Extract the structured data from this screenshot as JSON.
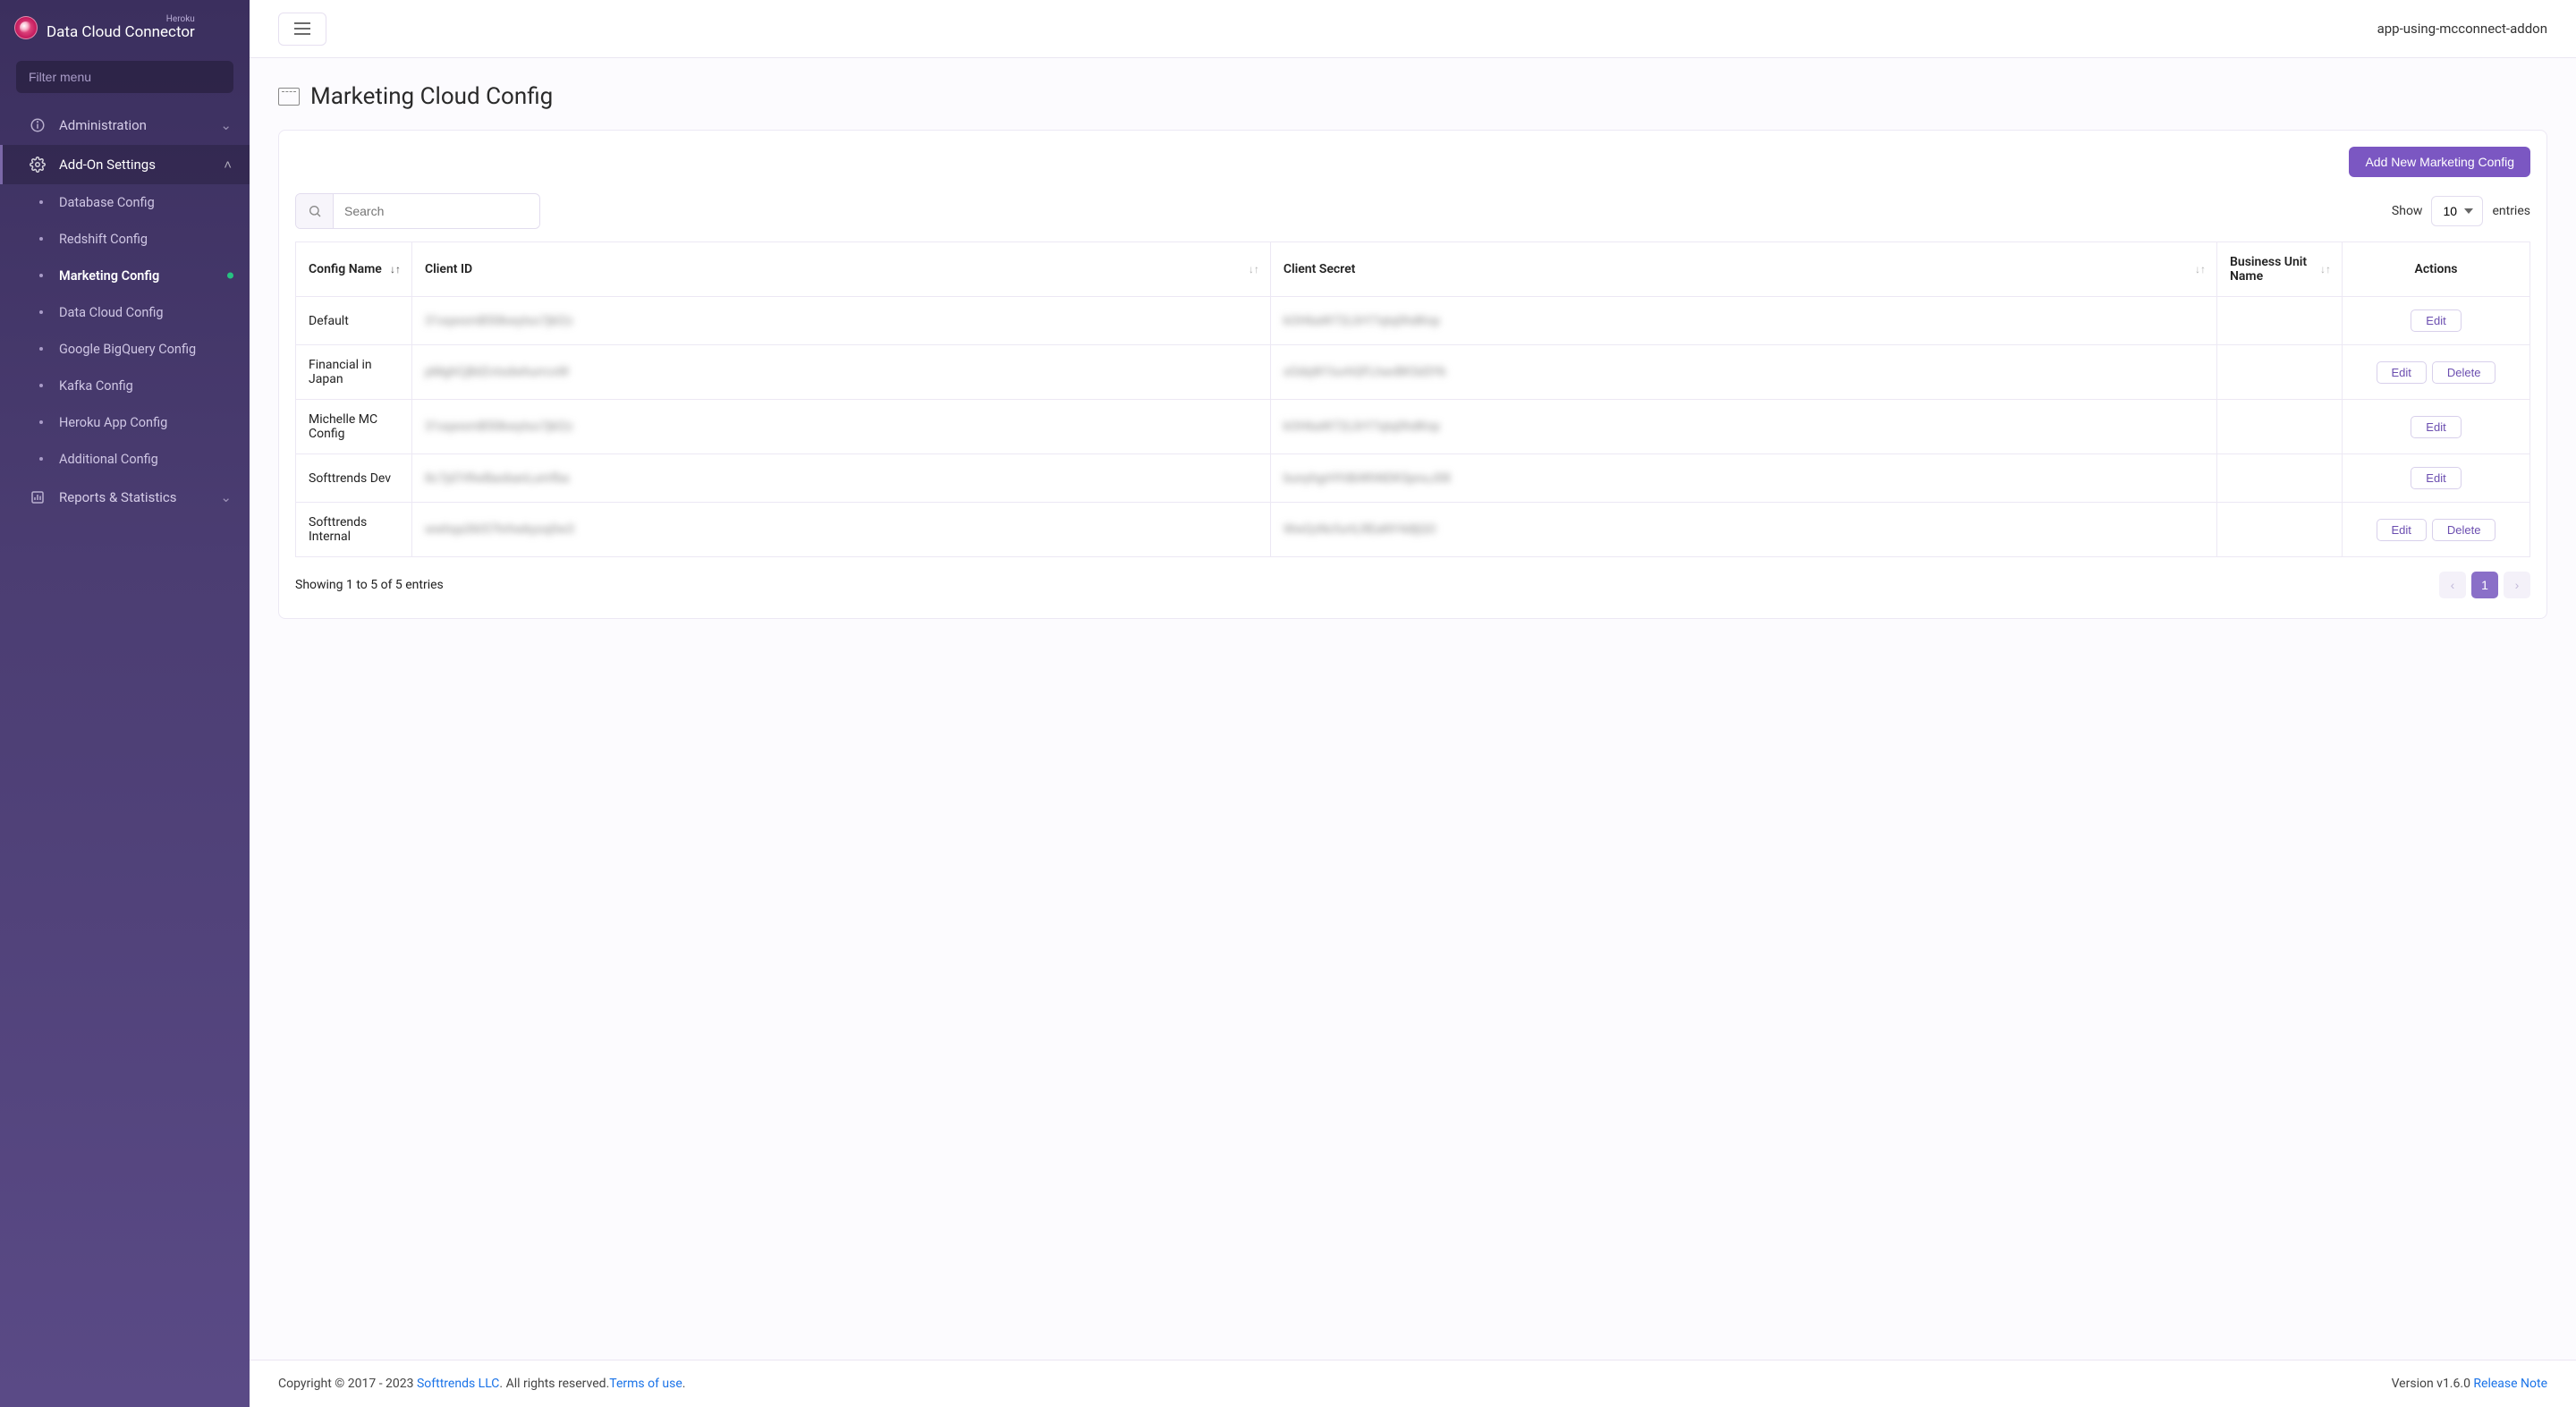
{
  "brand": {
    "sub": "Heroku",
    "main": "Data Cloud Connector"
  },
  "sidebar": {
    "filter_placeholder": "Filter menu",
    "groups": [
      {
        "label": "Administration",
        "icon": "info",
        "expanded": false
      },
      {
        "label": "Add-On Settings",
        "icon": "gear",
        "expanded": true,
        "items": [
          {
            "label": "Database Config"
          },
          {
            "label": "Redshift Config"
          },
          {
            "label": "Marketing Config",
            "current": true
          },
          {
            "label": "Data Cloud Config"
          },
          {
            "label": "Google BigQuery Config"
          },
          {
            "label": "Kafka Config"
          },
          {
            "label": "Heroku App Config"
          },
          {
            "label": "Additional Config"
          }
        ]
      },
      {
        "label": "Reports & Statistics",
        "icon": "report",
        "expanded": false
      }
    ]
  },
  "topbar": {
    "app_name": "app-using-mcconnect-addon"
  },
  "page": {
    "title": "Marketing Cloud Config"
  },
  "add_button": "Add New Marketing Config",
  "search_placeholder": "Search",
  "show_label": "Show",
  "entries_label": "entries",
  "page_size": "10",
  "columns": [
    "Config Name",
    "Client ID",
    "Client Secret",
    "Business Unit Name",
    "Actions"
  ],
  "rows": [
    {
      "name": "Default",
      "client_id": "31xqwsmB50kwytso7jkl2z",
      "client_secret": "kOH6aW72L0rY7qtq0hdKnp",
      "bu": "",
      "actions": [
        "Edit"
      ]
    },
    {
      "name": "Financial in Japan",
      "client_id": "pMghCjBd2vtsdwhurrcxW",
      "client_secret": "xOdqW1luvhQFLhavBK5d3Yk",
      "bu": "",
      "actions": [
        "Edit",
        "Delete"
      ]
    },
    {
      "name": "Michelle MC Config",
      "client_id": "31xqwsmB50kwytso7jkl2z",
      "client_secret": "kOH6aW72L0rY7qtq0hdKnp",
      "bu": "",
      "actions": [
        "Edit"
      ]
    },
    {
      "name": "Softtrends Dev",
      "client_id": "8c7jd7rRwBaobanLumfba",
      "client_secret": "bunyhgrHYdbWhNDKSpnuJ08",
      "bu": "",
      "actions": [
        "Edit"
      ]
    },
    {
      "name": "Softtrends Internal",
      "client_id": "wwhqa36t57hrhwkyoq0w3",
      "client_secret": "WwQzNcfurtLREaNY4dljQO",
      "bu": "",
      "actions": [
        "Edit",
        "Delete"
      ]
    }
  ],
  "table_info": "Showing 1 to 5 of 5 entries",
  "pagination": {
    "current": "1"
  },
  "footer": {
    "copyright_pre": "Copyright © 2017 - 2023 ",
    "company": "Softtrends LLC",
    "rights": ". All rights reserved.",
    "terms": "Terms of use",
    "period": ".",
    "version": "Version v1.6.0 ",
    "release": " Release Note"
  },
  "buttons": {
    "edit": "Edit",
    "delete": "Delete"
  },
  "colors": {
    "primary": "#7b57c2",
    "sidebar_top": "#3b2f5e",
    "sidebar_bottom": "#5a4a86",
    "border": "#ece8f4",
    "link": "#1a73e8",
    "active_dot": "#26c281"
  }
}
